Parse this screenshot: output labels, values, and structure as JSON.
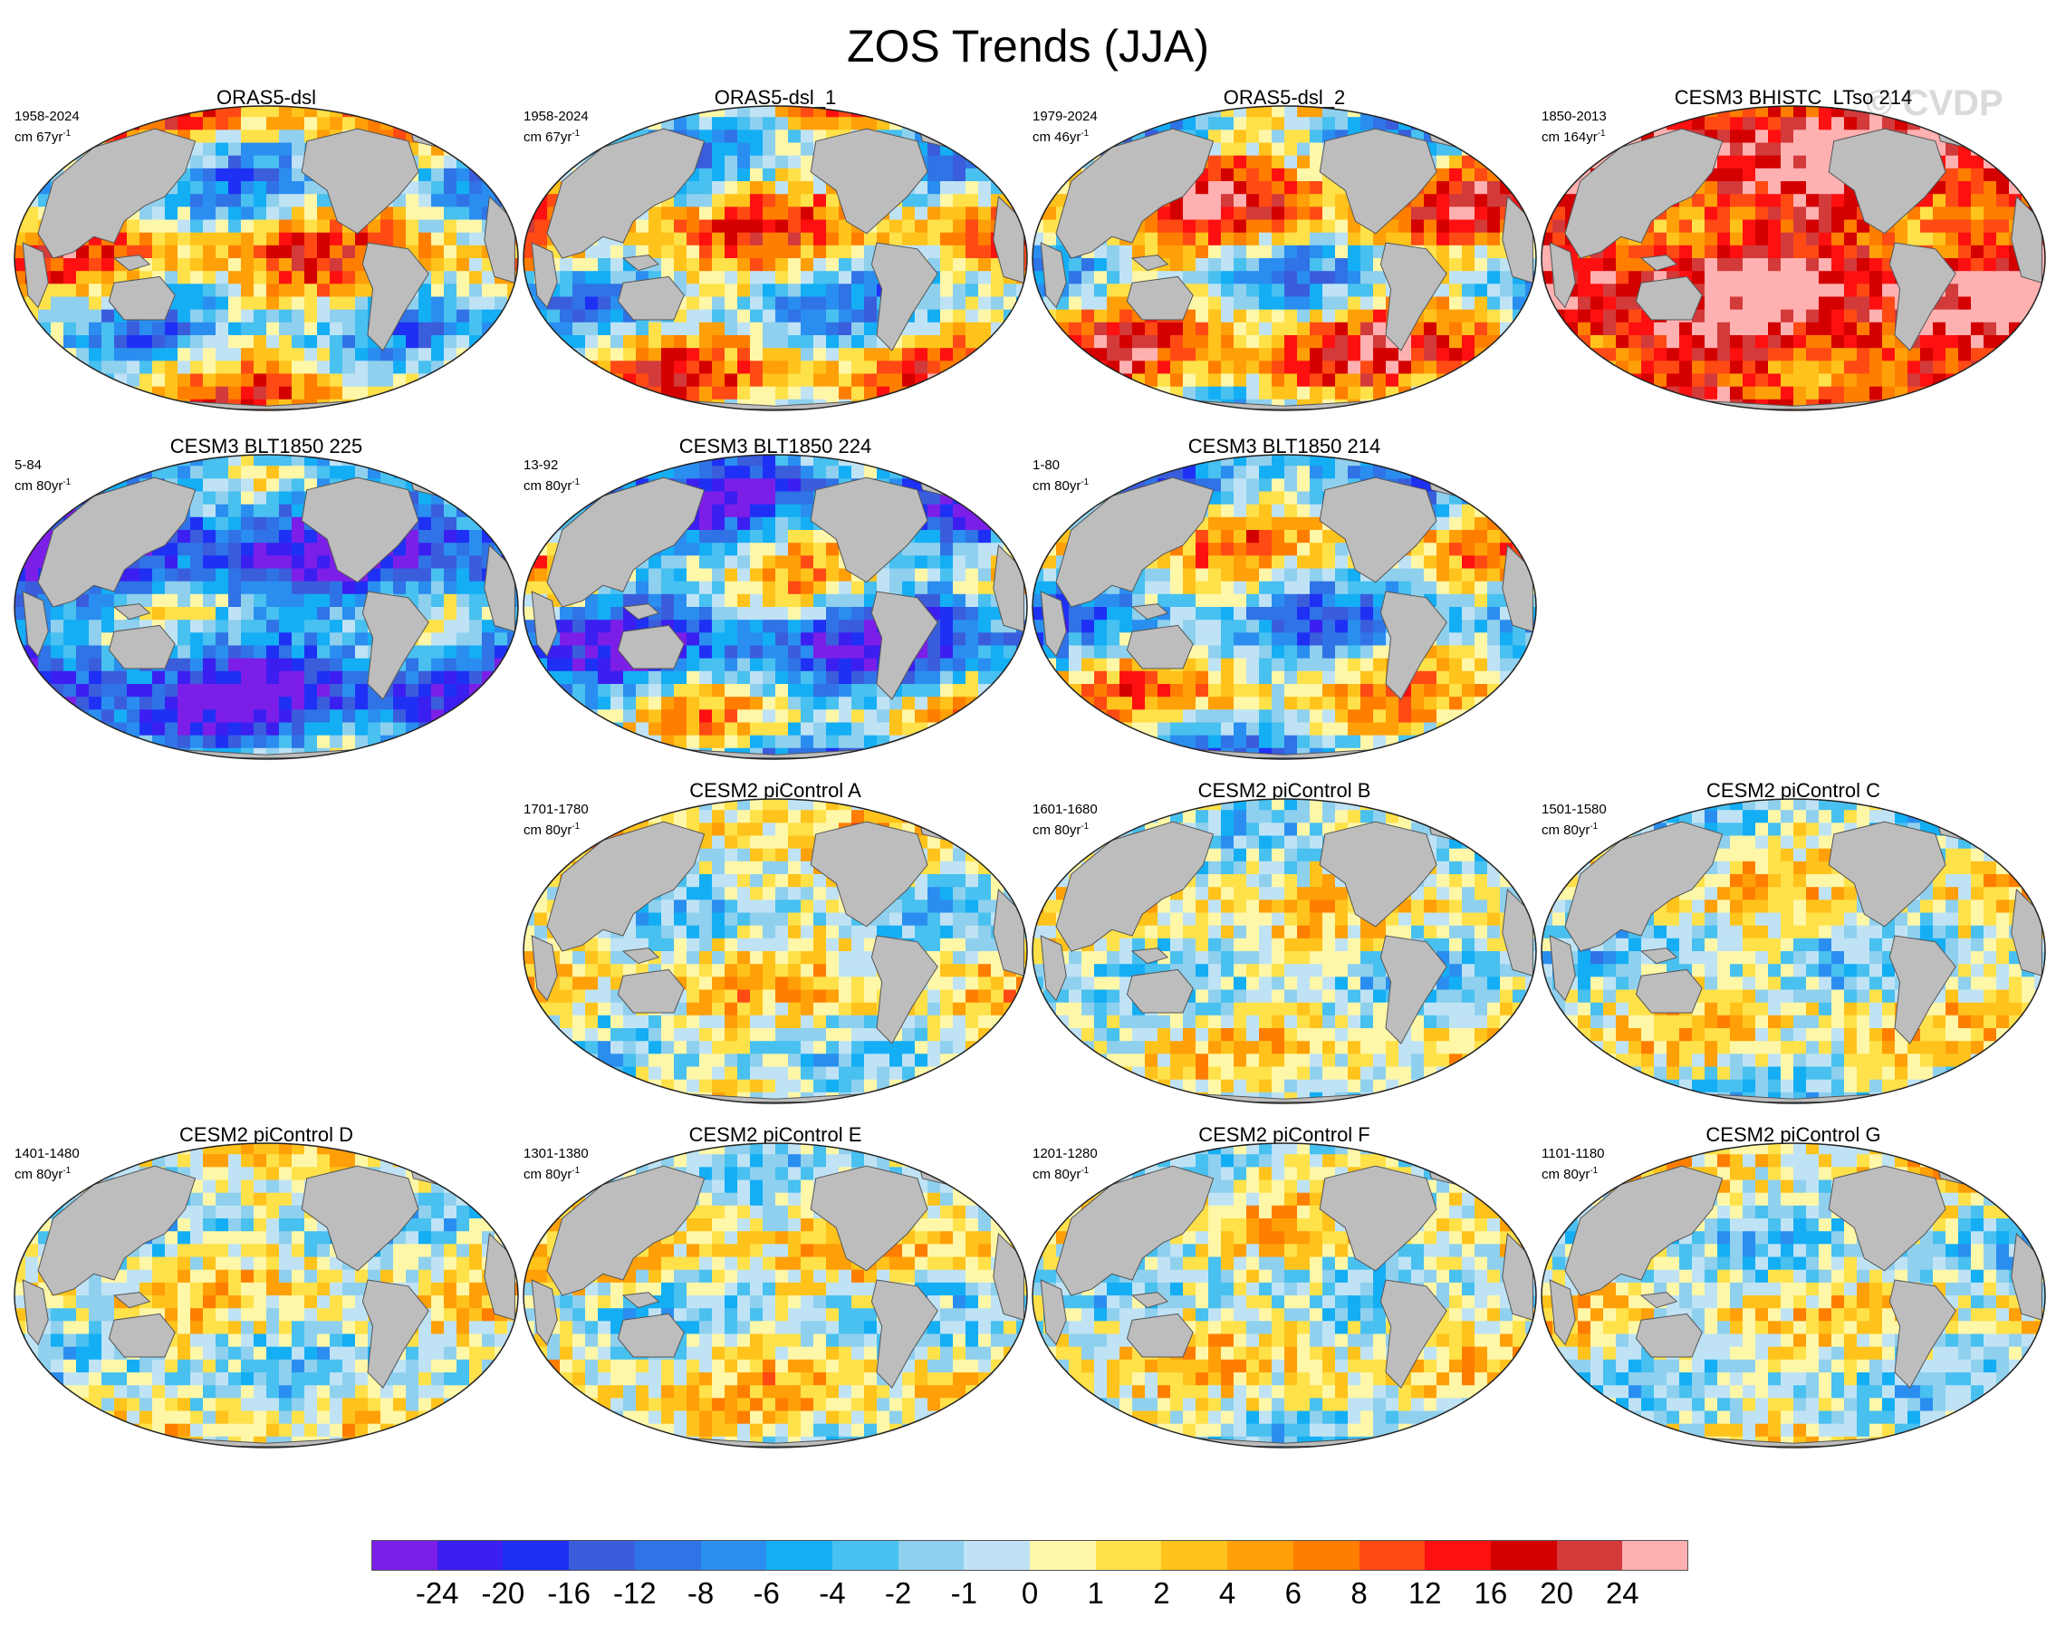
{
  "title": "ZOS Trends (JJA)",
  "watermark": "© CVDP",
  "colors": {
    "land": "#bdbdbd",
    "palette": [
      "#7b1fe8",
      "#3b1ff0",
      "#1f30f5",
      "#3a5ddc",
      "#2f73e6",
      "#2a8ef0",
      "#14aef5",
      "#48c0f0",
      "#8fd0ee",
      "#bfe3f5",
      "#fff7a8",
      "#ffe14a",
      "#ffc31c",
      "#ffa008",
      "#ff7e00",
      "#ff4a14",
      "#ff1010",
      "#d40000",
      "#d33a3a",
      "#ffb0b0"
    ]
  },
  "colorbar": {
    "labels": [
      "-24",
      "-20",
      "-16",
      "-12",
      "-8",
      "-6",
      "-4",
      "-2",
      "-1",
      "0",
      "1",
      "2",
      "4",
      "6",
      "8",
      "12",
      "16",
      "20",
      "24"
    ]
  },
  "panels": [
    {
      "title": "ORAS5-dsl",
      "period": "1958-2024",
      "unit": "cm 67yr",
      "row": 0,
      "col": 0,
      "bias": 0.2,
      "spread": 1.0,
      "seed": 3
    },
    {
      "title": "ORAS5-dsl_1",
      "period": "1958-2024",
      "unit": "cm 67yr",
      "row": 0,
      "col": 1,
      "bias": 0.2,
      "spread": 1.0,
      "seed": 5
    },
    {
      "title": "ORAS5-dsl_2",
      "period": "1979-2024",
      "unit": "cm 46yr",
      "row": 0,
      "col": 2,
      "bias": 0.6,
      "spread": 1.1,
      "seed": 7
    },
    {
      "title": "CESM3 BHISTC_LTso 214",
      "period": "1850-2013",
      "unit": "cm 164yr",
      "row": 0,
      "col": 3,
      "bias": 2.2,
      "spread": 0.6,
      "seed": 11
    },
    {
      "title": "CESM3 BLT1850 225",
      "period": "5-84",
      "unit": "cm 80yr",
      "row": 1,
      "col": 0,
      "bias": -1.6,
      "spread": 0.9,
      "seed": 13
    },
    {
      "title": "CESM3 BLT1850 224",
      "period": "13-92",
      "unit": "cm 80yr",
      "row": 1,
      "col": 1,
      "bias": -0.9,
      "spread": 1.1,
      "seed": 17
    },
    {
      "title": "CESM3 BLT1850 214",
      "period": "1-80",
      "unit": "cm 80yr",
      "row": 1,
      "col": 2,
      "bias": -0.2,
      "spread": 0.9,
      "seed": 19
    },
    {
      "title": "CESM2 piControl A",
      "period": "1701-1780",
      "unit": "cm 80yr",
      "row": 2,
      "col": 1,
      "bias": 0.1,
      "spread": 0.45,
      "seed": 23
    },
    {
      "title": "CESM2 piControl B",
      "period": "1601-1680",
      "unit": "cm 80yr",
      "row": 2,
      "col": 2,
      "bias": 0.0,
      "spread": 0.4,
      "seed": 29
    },
    {
      "title": "CESM2 piControl C",
      "period": "1501-1580",
      "unit": "cm 80yr",
      "row": 2,
      "col": 3,
      "bias": 0.0,
      "spread": 0.45,
      "seed": 31
    },
    {
      "title": "CESM2 piControl D",
      "period": "1401-1480",
      "unit": "cm 80yr",
      "row": 3,
      "col": 0,
      "bias": 0.0,
      "spread": 0.4,
      "seed": 37
    },
    {
      "title": "CESM2 piControl E",
      "period": "1301-1380",
      "unit": "cm 80yr",
      "row": 3,
      "col": 1,
      "bias": 0.1,
      "spread": 0.45,
      "seed": 41
    },
    {
      "title": "CESM2 piControl F",
      "period": "1201-1280",
      "unit": "cm 80yr",
      "row": 3,
      "col": 2,
      "bias": 0.05,
      "spread": 0.4,
      "seed": 43
    },
    {
      "title": "CESM2 piControl G",
      "period": "1101-1180",
      "unit": "cm 80yr",
      "row": 3,
      "col": 3,
      "bias": 0.0,
      "spread": 0.4,
      "seed": 47
    }
  ]
}
